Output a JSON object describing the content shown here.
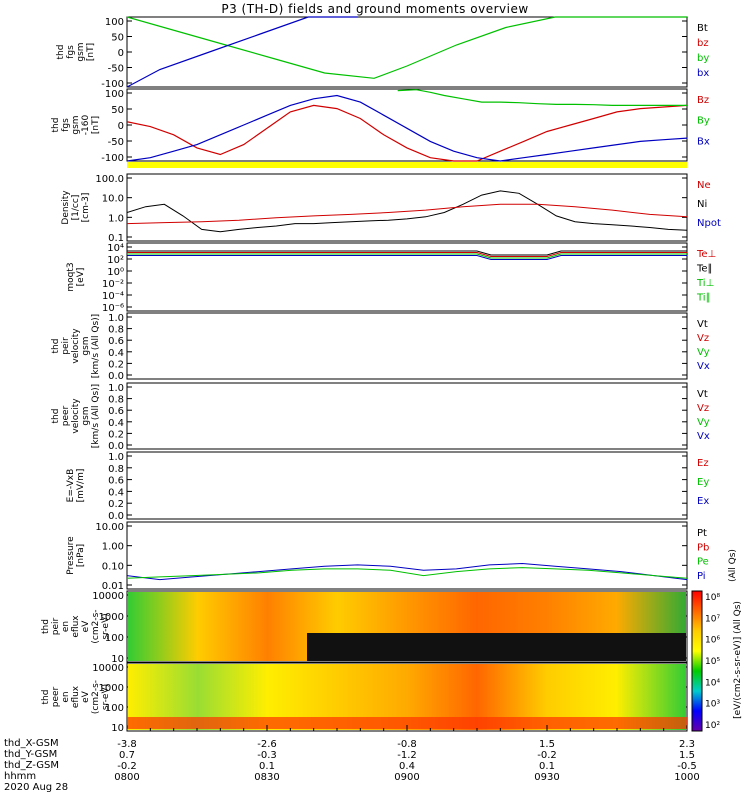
{
  "title": "P3 (TH-D) fields and ground moments overview",
  "chart_data": [
    {
      "type": "line",
      "ylabel": [
        "thd",
        "fgs",
        "gsm",
        "[nT]"
      ],
      "ylim": [
        -100,
        100
      ],
      "yticks": [
        "100",
        "50",
        "0",
        "-50",
        "-100"
      ],
      "legend": [
        {
          "name": "Bt",
          "color": "#000000"
        },
        {
          "name": "bz",
          "color": "#d00000"
        },
        {
          "name": "by",
          "color": "#00c000"
        },
        {
          "name": "bx",
          "color": "#0000c0"
        }
      ],
      "series": [
        {
          "name": "by",
          "color": "#00c000",
          "x": [
            0,
            3,
            6,
            9,
            12,
            15,
            17,
            20,
            23,
            26,
            30,
            34
          ],
          "y": [
            100,
            60,
            20,
            -20,
            -60,
            -75,
            -40,
            20,
            70,
            100,
            100,
            100
          ]
        },
        {
          "name": "bx",
          "color": "#0000c0",
          "x": [
            0,
            2,
            5,
            8,
            11,
            14
          ],
          "y": [
            -100,
            -50,
            0,
            50,
            100,
            100
          ]
        }
      ]
    },
    {
      "type": "line",
      "ylabel": [
        "thd",
        "fgs",
        "gsm",
        "-160",
        "[nT]"
      ],
      "ylim": [
        -120,
        100
      ],
      "yticks": [
        "100",
        "50",
        "0",
        "-50",
        "-100"
      ],
      "legend": [
        {
          "name": "Bz",
          "color": "#d00000"
        },
        {
          "name": "By",
          "color": "#00c000"
        },
        {
          "name": "Bx",
          "color": "#0000c0"
        }
      ],
      "series": [
        {
          "name": "Bz",
          "color": "#d00000",
          "x": [
            0,
            5,
            10,
            15,
            20,
            25,
            30,
            35,
            40,
            45,
            50,
            55,
            60,
            65,
            70,
            75,
            80,
            85,
            90,
            95,
            100,
            105,
            110,
            115,
            120
          ],
          "y": [
            0,
            -15,
            -40,
            -80,
            -100,
            -70,
            -20,
            30,
            50,
            40,
            10,
            -40,
            -80,
            -110,
            -120,
            -120,
            -90,
            -60,
            -30,
            -10,
            10,
            30,
            40,
            45,
            50
          ]
        },
        {
          "name": "By",
          "color": "#00c000",
          "x": [
            58,
            62,
            65,
            68,
            72,
            76,
            80,
            84,
            88,
            92,
            96,
            100,
            104,
            108,
            112,
            116,
            120
          ],
          "y": [
            95,
            98,
            90,
            80,
            70,
            60,
            60,
            58,
            55,
            53,
            53,
            52,
            50,
            50,
            50,
            50,
            50
          ]
        },
        {
          "name": "Bx",
          "color": "#0000c0",
          "x": [
            0,
            5,
            10,
            15,
            20,
            25,
            30,
            35,
            40,
            45,
            50,
            55,
            60,
            65,
            70,
            75,
            80,
            85,
            90,
            95,
            100,
            105,
            110,
            115,
            120
          ],
          "y": [
            -120,
            -110,
            -90,
            -70,
            -40,
            -10,
            20,
            50,
            70,
            80,
            60,
            20,
            -20,
            -60,
            -90,
            -110,
            -120,
            -110,
            -100,
            -90,
            -80,
            -70,
            -60,
            -55,
            -50
          ]
        }
      ]
    },
    {
      "type": "line",
      "ylabel": [
        "Density",
        "[1/cc]",
        "[cm-3]"
      ],
      "yscale": "log",
      "ylim": [
        0.05,
        150
      ],
      "yticks": [
        "100.0",
        "10.0",
        "1.0",
        "0.1"
      ],
      "legend": [
        {
          "name": "Ne",
          "color": "#d00000"
        },
        {
          "name": "Ni",
          "color": "#000000"
        },
        {
          "name": "Npot",
          "color": "#0000c0"
        }
      ],
      "series": [
        {
          "name": "Ni",
          "color": "#000000",
          "x": [
            0,
            4,
            8,
            12,
            16,
            20,
            24,
            28,
            32,
            36,
            40,
            44,
            48,
            52,
            56,
            60,
            64,
            68,
            72,
            76,
            80,
            84,
            88,
            92,
            96,
            100,
            104,
            108,
            112,
            116,
            120
          ],
          "y": [
            1.5,
            3,
            4,
            1,
            0.2,
            0.15,
            0.2,
            0.25,
            0.3,
            0.4,
            0.4,
            0.45,
            0.5,
            0.55,
            0.6,
            0.7,
            0.9,
            1.5,
            4,
            12,
            20,
            15,
            4,
            1,
            0.5,
            0.4,
            0.35,
            0.3,
            0.25,
            0.2,
            0.18
          ]
        },
        {
          "name": "Ne",
          "color": "#d00000",
          "x": [
            0,
            8,
            16,
            24,
            32,
            40,
            48,
            56,
            64,
            72,
            80,
            88,
            96,
            104,
            112,
            120
          ],
          "y": [
            0.4,
            0.45,
            0.5,
            0.6,
            0.8,
            1.0,
            1.2,
            1.5,
            2,
            3,
            4,
            4,
            3,
            2,
            1.2,
            0.9
          ]
        }
      ]
    },
    {
      "type": "line",
      "ylabel": [
        "moqt3",
        "[eV]"
      ],
      "yscale": "log",
      "yticks": [
        "10⁴",
        "10²",
        "10⁰",
        "10⁻²",
        "10⁻⁴",
        "10⁻⁶"
      ],
      "legend": [
        {
          "name": "Te⊥",
          "color": "#d00000"
        },
        {
          "name": "Te∥",
          "color": "#000000"
        },
        {
          "name": "Ti⊥",
          "color": "#00c000"
        },
        {
          "name": "Ti∥",
          "color": "#00c000"
        }
      ]
    },
    {
      "type": "line",
      "ylabel": [
        "thd",
        "peir",
        "velocity",
        "gsm",
        "[km/s (All Qs)]"
      ],
      "ylim": [
        0,
        1
      ],
      "yticks": [
        "1.0",
        "0.8",
        "0.6",
        "0.4",
        "0.2",
        "0.0"
      ],
      "legend": [
        {
          "name": "Vt",
          "color": "#000000"
        },
        {
          "name": "Vz",
          "color": "#d00000"
        },
        {
          "name": "Vy",
          "color": "#00c000"
        },
        {
          "name": "Vx",
          "color": "#0000c0"
        }
      ]
    },
    {
      "type": "line",
      "ylabel": [
        "thd",
        "peer",
        "velocity",
        "gsm",
        "[km/s (All Qs)]"
      ],
      "ylim": [
        0,
        1
      ],
      "yticks": [
        "1.0",
        "0.8",
        "0.6",
        "0.4",
        "0.2",
        "0.0"
      ],
      "legend": [
        {
          "name": "Vt",
          "color": "#000000"
        },
        {
          "name": "Vz",
          "color": "#d00000"
        },
        {
          "name": "Vy",
          "color": "#00c000"
        },
        {
          "name": "Vx",
          "color": "#0000c0"
        }
      ]
    },
    {
      "type": "line",
      "ylabel": [
        "E=-VxB",
        "[mV/m]"
      ],
      "ylim": [
        0,
        1
      ],
      "yticks": [
        "1.0",
        "0.8",
        "0.6",
        "0.4",
        "0.2",
        "0.0"
      ],
      "legend": [
        {
          "name": "Ez",
          "color": "#d00000"
        },
        {
          "name": "Ey",
          "color": "#00c000"
        },
        {
          "name": "Ex",
          "color": "#0000c0"
        }
      ]
    },
    {
      "type": "line",
      "ylabel": [
        "Pressure",
        "[nPa]"
      ],
      "yscale": "log",
      "yticks": [
        "10.00",
        "1.00",
        "0.10",
        "0.01"
      ],
      "legend": [
        {
          "name": "Pt",
          "color": "#000000"
        },
        {
          "name": "Pb",
          "color": "#d00000"
        },
        {
          "name": "Pe",
          "color": "#00c000"
        },
        {
          "name": "Pi",
          "color": "#0000c0"
        }
      ],
      "legend_note": "(All Qs)"
    },
    {
      "type": "heatmap",
      "ylabel": [
        "thd",
        "peir",
        "en",
        "eflux",
        "eV",
        "(cm2-s-",
        "sr-eV)"
      ],
      "yticks": [
        "10000",
        "1000",
        "100",
        "10"
      ]
    },
    {
      "type": "heatmap",
      "ylabel": [
        "thd",
        "peer",
        "en",
        "eflux",
        "eV",
        "(cm2-s-",
        "sr-eV)"
      ],
      "yticks": [
        "10000",
        "1000",
        "100",
        "10"
      ]
    }
  ],
  "colorbar": {
    "ticks": [
      "10⁸",
      "10⁷",
      "10⁶",
      "10⁵",
      "10⁴",
      "10³",
      "10²"
    ],
    "label": "[eV/(cm2-s-sr-eV)] (All Qs)"
  },
  "x_axis": {
    "rows": [
      {
        "label": "thd_X-GSM",
        "values": [
          "-3.8",
          "-2.6",
          "-0.8",
          "1.5",
          "2.3"
        ]
      },
      {
        "label": "thd_Y-GSM",
        "values": [
          "0.7",
          "-0.3",
          "-1.2",
          "-0.2",
          "1.5"
        ]
      },
      {
        "label": "thd_Z-GSM",
        "values": [
          "-0.2",
          "0.1",
          "0.4",
          "0.1",
          "-0.5"
        ]
      },
      {
        "label": "hhmm",
        "values": [
          "0800",
          "0830",
          "0900",
          "0930",
          "1000"
        ]
      }
    ],
    "date": "2020 Aug 28"
  }
}
